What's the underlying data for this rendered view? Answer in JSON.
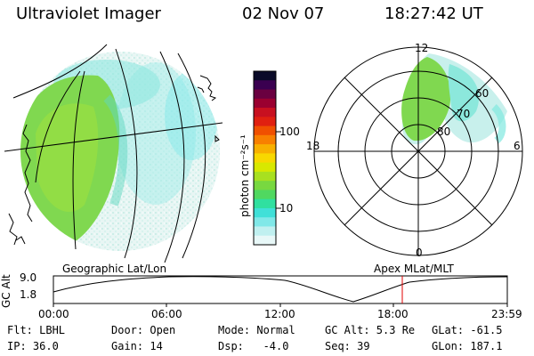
{
  "header": {
    "instrument": "Ultraviolet Imager",
    "date": "02 Nov 07",
    "time": "18:27:42 UT"
  },
  "colorbar": {
    "label": "photon cm⁻²s⁻¹",
    "ticks": [
      "100",
      "10"
    ],
    "colors": [
      "#0a0a28",
      "#3a0050",
      "#6a0040",
      "#9a0030",
      "#c81020",
      "#e02010",
      "#f05000",
      "#f88000",
      "#f8b000",
      "#f8d800",
      "#d8e800",
      "#a8e020",
      "#78d840",
      "#50d860",
      "#30e0a0",
      "#40e0d8",
      "#80e8e8",
      "#c0f0f0",
      "#e8f8f8"
    ]
  },
  "polar_plot": {
    "mlt_labels": [
      "12",
      "18",
      "6",
      "0"
    ],
    "lat_labels": [
      "60",
      "70",
      "80"
    ]
  },
  "timeline": {
    "left_label": "Geographic Lat/Lon",
    "right_label": "Apex MLat/MLT",
    "axis_label": "GC Alt",
    "y_ticks": [
      "9.0",
      "1.8"
    ],
    "x_ticks": [
      "00:00",
      "06:00",
      "12:00",
      "18:00",
      "23:59"
    ],
    "marker_color": "#e00000"
  },
  "status": {
    "filter": "Flt: LBHL",
    "ip": "IP: 36.0",
    "door": "Door: Open",
    "gain": "Gain: 14",
    "mode": "Mode: Normal",
    "dsp": "Dsp:   -4.0",
    "gc_alt": "GC Alt: 5.3 Re",
    "seq": "Seq: 39",
    "glat": "GLat: -61.5",
    "glon": "GLon: 187.1"
  }
}
